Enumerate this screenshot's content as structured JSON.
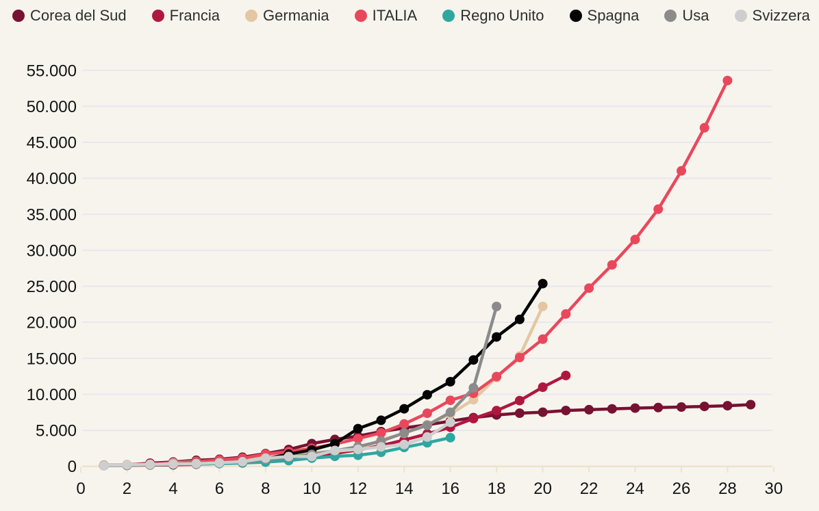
{
  "page": {
    "background": "#f7f4ee",
    "gridline_color": "#e9e7ee",
    "axisline_color": "#eee3c9",
    "text_color": "#141414"
  },
  "legend": {
    "position": "top",
    "items": [
      {
        "label": "Corea del Sud",
        "color": "#771232"
      },
      {
        "label": "Francia",
        "color": "#b0173f"
      },
      {
        "label": "Germania",
        "color": "#e3c7a3"
      },
      {
        "label": "ITALIA",
        "color": "#e9485c"
      },
      {
        "label": "Regno Unito",
        "color": "#2fa7a0"
      },
      {
        "label": "Spagna",
        "color": "#050505"
      },
      {
        "label": "Usa",
        "color": "#8b8b8b"
      },
      {
        "label": "Svizzera",
        "color": "#cecece"
      }
    ]
  },
  "chart_data": {
    "type": "line",
    "title": "",
    "xlabel": "",
    "ylabel": "",
    "grid": true,
    "marker": "circle",
    "x_axis": {
      "min": 0,
      "max": 30,
      "tick_step": 2,
      "ticks": [
        {
          "value": 0,
          "label": "0"
        },
        {
          "value": 2,
          "label": "2"
        },
        {
          "value": 4,
          "label": "4"
        },
        {
          "value": 6,
          "label": "6"
        },
        {
          "value": 8,
          "label": "8"
        },
        {
          "value": 10,
          "label": "10"
        },
        {
          "value": 12,
          "label": "12"
        },
        {
          "value": 14,
          "label": "14"
        },
        {
          "value": 16,
          "label": "16"
        },
        {
          "value": 18,
          "label": "18"
        },
        {
          "value": 20,
          "label": "20"
        },
        {
          "value": 22,
          "label": "22"
        },
        {
          "value": 24,
          "label": "24"
        },
        {
          "value": 26,
          "label": "26"
        },
        {
          "value": 28,
          "label": "28"
        },
        {
          "value": 30,
          "label": "30"
        }
      ]
    },
    "y_axis": {
      "min": 0,
      "max": 55000,
      "tick_step": 5000,
      "ticks": [
        {
          "value": 0,
          "label": "0"
        },
        {
          "value": 5000,
          "label": "5.000"
        },
        {
          "value": 10000,
          "label": "10.000"
        },
        {
          "value": 15000,
          "label": "15.000"
        },
        {
          "value": 20000,
          "label": "20.000"
        },
        {
          "value": 25000,
          "label": "25.000"
        },
        {
          "value": 30000,
          "label": "30.000"
        },
        {
          "value": 35000,
          "label": "35.000"
        },
        {
          "value": 40000,
          "label": "40.000"
        },
        {
          "value": 45000,
          "label": "45.000"
        },
        {
          "value": 50000,
          "label": "50.000"
        },
        {
          "value": 55000,
          "label": "55.000"
        }
      ]
    },
    "series": [
      {
        "name": "Corea del Sud",
        "color": "#771232",
        "start_x": 1,
        "values": [
          104,
          204,
          433,
          602,
          833,
          977,
          1261,
          1766,
          2337,
          3150,
          3736,
          4212,
          4812,
          5328,
          5766,
          6284,
          6767,
          7134,
          7382,
          7513,
          7755,
          7869,
          7979,
          8086,
          8162,
          8236,
          8320,
          8413,
          8565
        ]
      },
      {
        "name": "Francia",
        "color": "#b0173f",
        "start_x": 1,
        "values": [
          100,
          130,
          191,
          212,
          285,
          423,
          613,
          949,
          1126,
          1412,
          1784,
          2281,
          2876,
          3661,
          4499,
          5423,
          6633,
          7730,
          9134,
          10995,
          12612
        ]
      },
      {
        "name": "Germania",
        "color": "#e3c7a3",
        "start_x": 1,
        "values": [
          159,
          196,
          262,
          482,
          670,
          799,
          1040,
          1176,
          1457,
          1908,
          2078,
          2369,
          3675,
          4585,
          5795,
          7272,
          9257,
          12327,
          15320,
          22213
        ]
      },
      {
        "name": "ITALIA",
        "color": "#e9485c",
        "start_x": 1,
        "values": [
          155,
          229,
          322,
          400,
          650,
          888,
          1128,
          1694,
          2036,
          2502,
          3089,
          3858,
          4636,
          5883,
          7375,
          9172,
          10149,
          12462,
          15113,
          17660,
          21157,
          24747,
          27980,
          31506,
          35713,
          41035,
          47021,
          53578
        ]
      },
      {
        "name": "Regno Unito",
        "color": "#2fa7a0",
        "start_x": 1,
        "values": [
          115,
          163,
          206,
          273,
          321,
          382,
          456,
          590,
          797,
          1140,
          1391,
          1543,
          1950,
          2626,
          3269,
          3983
        ]
      },
      {
        "name": "Spagna",
        "color": "#050505",
        "start_x": 1,
        "values": [
          120,
          165,
          222,
          259,
          400,
          500,
          673,
          1073,
          1695,
          2277,
          3146,
          5232,
          6391,
          7988,
          9942,
          11748,
          14769,
          17963,
          20410,
          25374
        ]
      },
      {
        "name": "Usa",
        "color": "#8b8b8b",
        "start_x": 1,
        "values": [
          118,
          149,
          217,
          262,
          402,
          518,
          583,
          959,
          1281,
          1663,
          2179,
          2727,
          3499,
          4632,
          5700,
          7500,
          10900,
          22200
        ]
      },
      {
        "name": "Svizzera",
        "color": "#cecece",
        "start_x": 1,
        "values": [
          114,
          214,
          268,
          337,
          374,
          491,
          652,
          1139,
          1359,
          1375,
          2200,
          2353,
          2700,
          3028,
          4075,
          6113
        ]
      }
    ]
  }
}
